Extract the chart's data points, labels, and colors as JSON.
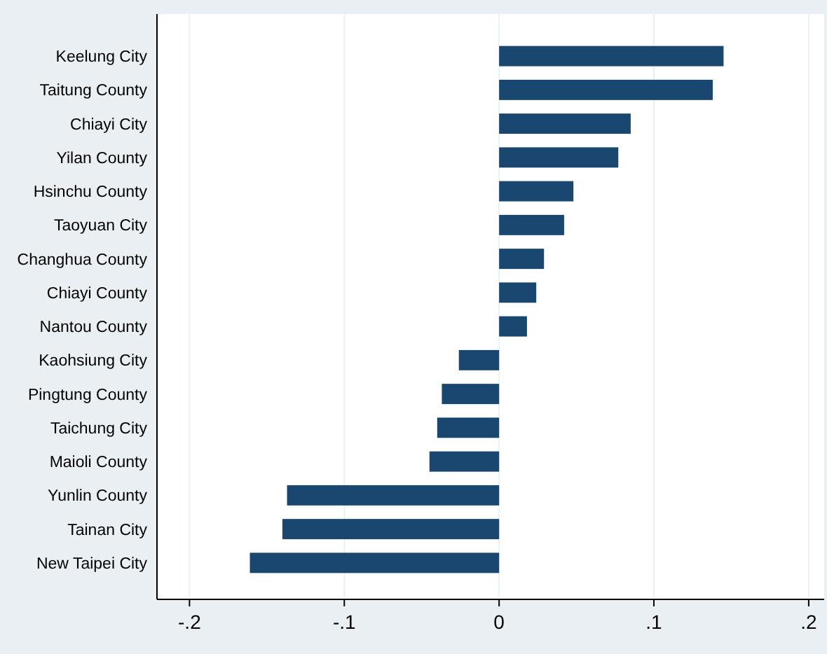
{
  "chart_data": {
    "type": "bar",
    "orientation": "horizontal",
    "categories": [
      "Keelung City",
      "Taitung County",
      "Chiayi City",
      "Yilan County",
      "Hsinchu County",
      "Taoyuan City",
      "Changhua County",
      "Chiayi County",
      "Nantou County",
      "Kaohsiung City",
      "Pingtung County",
      "Taichung City",
      "Maioli County",
      "Yunlin County",
      "Tainan City",
      "New Taipei City"
    ],
    "values": [
      0.145,
      0.138,
      0.085,
      0.077,
      0.048,
      0.042,
      0.029,
      0.024,
      0.018,
      -0.026,
      -0.037,
      -0.04,
      -0.045,
      -0.137,
      -0.14,
      -0.161
    ],
    "color": "#1a476f",
    "xlim": [
      -0.221,
      0.21
    ],
    "xticks": [
      {
        "value": -0.2,
        "label": "-.2"
      },
      {
        "value": -0.1,
        "label": "-.1"
      },
      0,
      {
        "value": 0.1,
        "label": ".1"
      },
      {
        "value": 0.2,
        "label": ".2"
      }
    ],
    "grid": "x"
  }
}
